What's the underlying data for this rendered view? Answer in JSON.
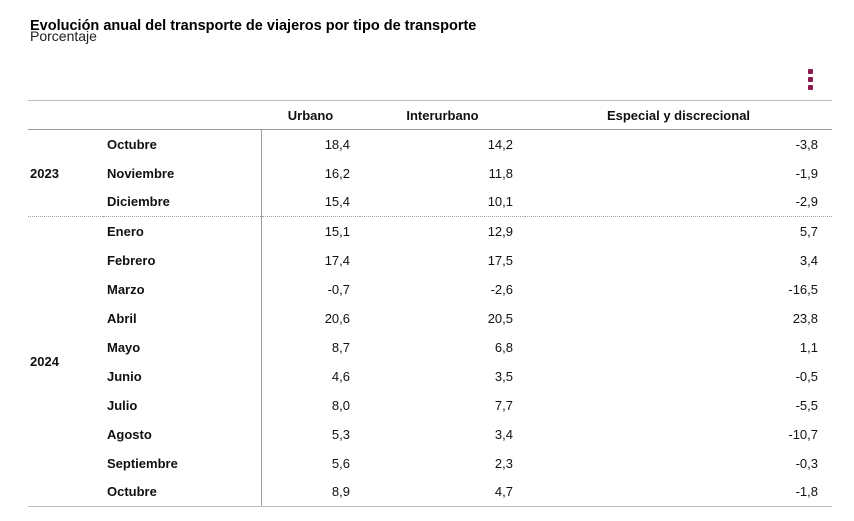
{
  "page": {
    "title": "Evolución anual del transporte de viajeros por tipo de transporte",
    "subtitle": "Porcentaje"
  },
  "menu": {
    "icon": "kebab-vertical-menu-icon"
  },
  "colors": {
    "accent_dots": "#8C1C4D",
    "border_light": "#b6bec0",
    "border_dark": "#999999",
    "text": "#111111"
  },
  "table": {
    "columns": [
      "Urbano",
      "Interurbano",
      "Especial y discrecional"
    ],
    "groups": [
      {
        "year": "2023",
        "rows": [
          {
            "month": "Octubre",
            "urbano": "18,4",
            "interurbano": "14,2",
            "especial": "-3,8"
          },
          {
            "month": "Noviembre",
            "urbano": "16,2",
            "interurbano": "11,8",
            "especial": "-1,9"
          },
          {
            "month": "Diciembre",
            "urbano": "15,4",
            "interurbano": "10,1",
            "especial": "-2,9"
          }
        ]
      },
      {
        "year": "2024",
        "rows": [
          {
            "month": "Enero",
            "urbano": "15,1",
            "interurbano": "12,9",
            "especial": "5,7"
          },
          {
            "month": "Febrero",
            "urbano": "17,4",
            "interurbano": "17,5",
            "especial": "3,4"
          },
          {
            "month": "Marzo",
            "urbano": "-0,7",
            "interurbano": "-2,6",
            "especial": "-16,5"
          },
          {
            "month": "Abril",
            "urbano": "20,6",
            "interurbano": "20,5",
            "especial": "23,8"
          },
          {
            "month": "Mayo",
            "urbano": "8,7",
            "interurbano": "6,8",
            "especial": "1,1"
          },
          {
            "month": "Junio",
            "urbano": "4,6",
            "interurbano": "3,5",
            "especial": "-0,5"
          },
          {
            "month": "Julio",
            "urbano": "8,0",
            "interurbano": "7,7",
            "especial": "-5,5"
          },
          {
            "month": "Agosto",
            "urbano": "5,3",
            "interurbano": "3,4",
            "especial": "-10,7"
          },
          {
            "month": "Septiembre",
            "urbano": "5,6",
            "interurbano": "2,3",
            "especial": "-0,3"
          },
          {
            "month": "Octubre",
            "urbano": "8,9",
            "interurbano": "4,7",
            "especial": "-1,8"
          }
        ]
      }
    ]
  },
  "chart_data": {
    "type": "table",
    "title": "Evolución anual del transporte de viajeros por tipo de transporte",
    "subtitle": "Porcentaje",
    "unit": "percent",
    "columns": [
      "Urbano",
      "Interurbano",
      "Especial y discrecional"
    ],
    "rows": [
      {
        "year": 2023,
        "month": "Octubre",
        "urbano": 18.4,
        "interurbano": 14.2,
        "especial_y_discrecional": -3.8
      },
      {
        "year": 2023,
        "month": "Noviembre",
        "urbano": 16.2,
        "interurbano": 11.8,
        "especial_y_discrecional": -1.9
      },
      {
        "year": 2023,
        "month": "Diciembre",
        "urbano": 15.4,
        "interurbano": 10.1,
        "especial_y_discrecional": -2.9
      },
      {
        "year": 2024,
        "month": "Enero",
        "urbano": 15.1,
        "interurbano": 12.9,
        "especial_y_discrecional": 5.7
      },
      {
        "year": 2024,
        "month": "Febrero",
        "urbano": 17.4,
        "interurbano": 17.5,
        "especial_y_discrecional": 3.4
      },
      {
        "year": 2024,
        "month": "Marzo",
        "urbano": -0.7,
        "interurbano": -2.6,
        "especial_y_discrecional": -16.5
      },
      {
        "year": 2024,
        "month": "Abril",
        "urbano": 20.6,
        "interurbano": 20.5,
        "especial_y_discrecional": 23.8
      },
      {
        "year": 2024,
        "month": "Mayo",
        "urbano": 8.7,
        "interurbano": 6.8,
        "especial_y_discrecional": 1.1
      },
      {
        "year": 2024,
        "month": "Junio",
        "urbano": 4.6,
        "interurbano": 3.5,
        "especial_y_discrecional": -0.5
      },
      {
        "year": 2024,
        "month": "Julio",
        "urbano": 8.0,
        "interurbano": 7.7,
        "especial_y_discrecional": -5.5
      },
      {
        "year": 2024,
        "month": "Agosto",
        "urbano": 5.3,
        "interurbano": 3.4,
        "especial_y_discrecional": -10.7
      },
      {
        "year": 2024,
        "month": "Septiembre",
        "urbano": 5.6,
        "interurbano": 2.3,
        "especial_y_discrecional": -0.3
      },
      {
        "year": 2024,
        "month": "Octubre",
        "urbano": 8.9,
        "interurbano": 4.7,
        "especial_y_discrecional": -1.8
      }
    ]
  }
}
